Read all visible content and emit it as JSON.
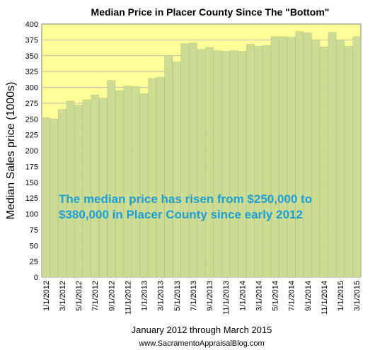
{
  "chart_data": {
    "type": "bar",
    "title": "Median Price in Placer County Since The \"Bottom\"",
    "ylabel": "Median Sales price (1000s)",
    "xlabel": "January 2012 through March 2015",
    "source": "www.SacramentoAppraisalBlog.com",
    "annotation": [
      "The median price has risen from $250,000 to",
      "$380,000 in Placer County since early 2012"
    ],
    "ylim": [
      0,
      400
    ],
    "y_ticks": [
      0,
      25,
      50,
      75,
      100,
      125,
      150,
      175,
      200,
      225,
      250,
      275,
      300,
      325,
      350,
      375,
      400
    ],
    "grid": "horizontal",
    "categories": [
      "1/1/2012",
      "2/1/2012",
      "3/1/2012",
      "4/1/2012",
      "5/1/2012",
      "6/1/2012",
      "7/1/2012",
      "8/1/2012",
      "9/1/2012",
      "10/1/2012",
      "11/1/2012",
      "12/1/2012",
      "1/1/2013",
      "2/1/2013",
      "3/1/2013",
      "4/1/2013",
      "5/1/2013",
      "6/1/2013",
      "7/1/2013",
      "8/1/2013",
      "9/1/2013",
      "10/1/2013",
      "11/1/2013",
      "12/1/2013",
      "1/1/2014",
      "2/1/2014",
      "3/1/2014",
      "4/1/2014",
      "5/1/2014",
      "6/1/2014",
      "7/1/2014",
      "8/1/2014",
      "9/1/2014",
      "10/1/2014",
      "11/1/2014",
      "12/1/2014",
      "1/1/2015",
      "2/1/2015",
      "3/1/2015"
    ],
    "tick_labels": [
      "1/1/2012",
      "3/1/2012",
      "5/1/2012",
      "7/1/2012",
      "9/1/2012",
      "11/1/2012",
      "1/1/2013",
      "3/1/2013",
      "5/1/2013",
      "7/1/2013",
      "9/1/2013",
      "11/1/2013",
      "1/1/2014",
      "3/1/2014",
      "5/1/2014",
      "7/1/2014",
      "9/1/2014",
      "11/1/2014",
      "1/1/2015",
      "3/1/2015"
    ],
    "values": [
      252,
      250,
      265,
      278,
      272,
      280,
      288,
      283,
      311,
      295,
      302,
      301,
      290,
      314,
      316,
      350,
      340,
      369,
      370,
      360,
      363,
      358,
      357,
      358,
      357,
      368,
      365,
      366,
      380,
      380,
      379,
      388,
      386,
      375,
      364,
      387,
      375,
      365,
      380
    ],
    "colors": {
      "bar": "#ccdc95",
      "bar_edge": "#b2c47a",
      "plot_bg": "#ffff99",
      "grid": "#bdbdbd",
      "annotation": "#1ea0d6"
    }
  }
}
